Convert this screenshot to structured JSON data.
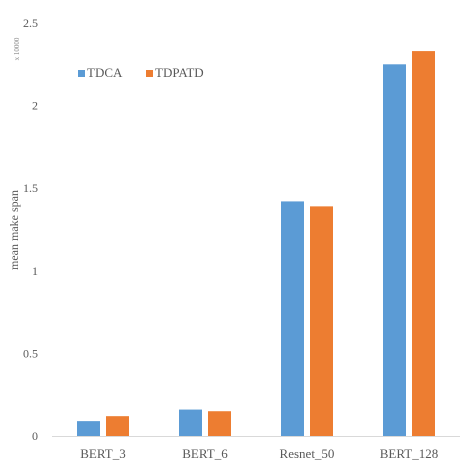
{
  "chart_data": {
    "type": "bar",
    "categories": [
      "BERT_3",
      "BERT_6",
      "Resnet_50",
      "BERT_128"
    ],
    "series": [
      {
        "name": "TDCA",
        "color": "#5B9BD5",
        "values": [
          0.09,
          0.16,
          1.42,
          2.25
        ]
      },
      {
        "name": "TDPATD",
        "color": "#ED7D31",
        "values": [
          0.12,
          0.15,
          1.39,
          2.33
        ]
      }
    ],
    "ylabel": "mean make span",
    "xlabel": "",
    "axis_multiplier": "x 10000",
    "ylim": [
      0,
      2.5
    ],
    "yticks": [
      "0",
      "0.5",
      "1",
      "1.5",
      "2",
      "2.5"
    ],
    "legend_position": "top-left",
    "grid": false,
    "axis_color": "#d9d9d9"
  }
}
